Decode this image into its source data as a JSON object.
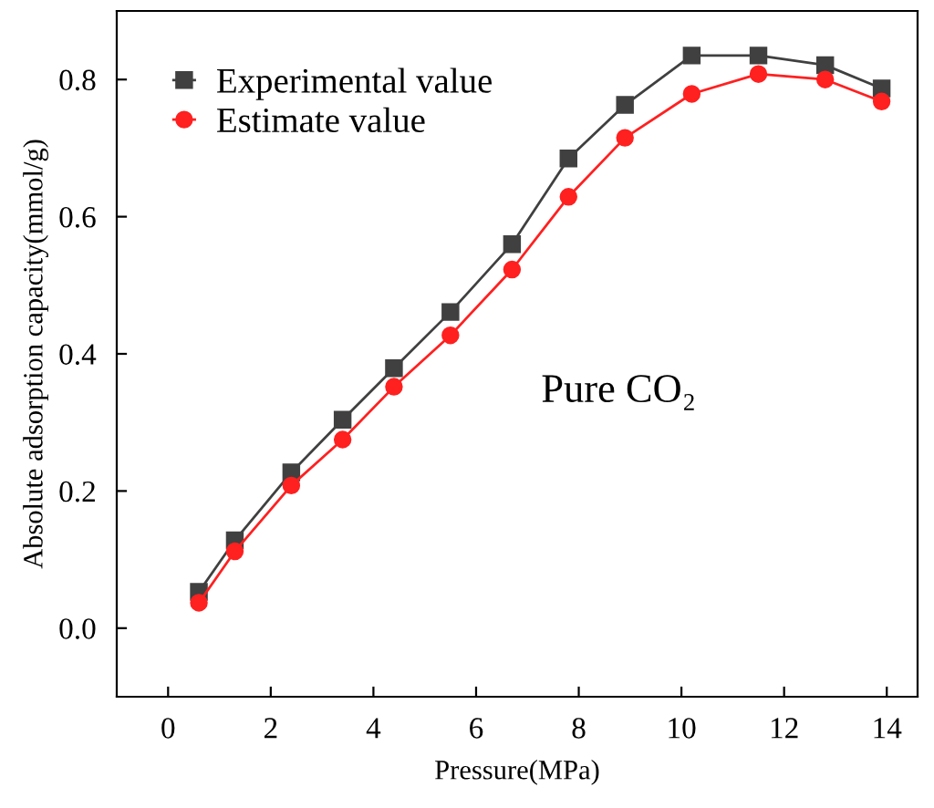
{
  "chart_data": {
    "type": "line",
    "xlabel": "Pressure(MPa)",
    "ylabel": "Absolute adsorption capacity(mmol/g)",
    "x": [
      0.6,
      1.3,
      2.4,
      3.4,
      4.4,
      5.5,
      6.7,
      7.8,
      8.9,
      10.2,
      11.5,
      12.8,
      13.9
    ],
    "series": [
      {
        "name": "Experimental value",
        "color": "#404040",
        "marker": "square",
        "values": [
          0.053,
          0.128,
          0.227,
          0.304,
          0.379,
          0.461,
          0.56,
          0.685,
          0.763,
          0.835,
          0.835,
          0.821,
          0.787
        ]
      },
      {
        "name": "Estimate value",
        "color": "#ff2020",
        "marker": "circle",
        "values": [
          0.037,
          0.112,
          0.208,
          0.275,
          0.352,
          0.427,
          0.523,
          0.629,
          0.715,
          0.779,
          0.808,
          0.8,
          0.768
        ]
      }
    ],
    "xlim": [
      -1,
      14.6
    ],
    "ylim": [
      -0.1,
      0.9
    ],
    "xticks": [
      0,
      2,
      4,
      6,
      8,
      10,
      12,
      14
    ],
    "yticks": [
      {
        "value": 0,
        "label": "0.0"
      },
      0.2,
      0.4,
      0.6,
      0.8
    ],
    "annotations": [
      "Pure CO₂"
    ],
    "grid": false,
    "legend": "top left",
    "line_style": "solid"
  }
}
